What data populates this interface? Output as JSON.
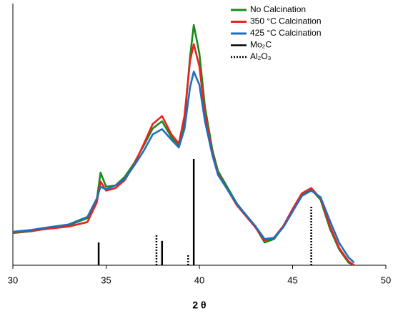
{
  "chart_data": {
    "type": "line",
    "xlabel": "2 θ",
    "xlim": [
      30,
      50
    ],
    "xticks": [
      30,
      35,
      40,
      45,
      50
    ],
    "ylim": [
      0,
      100
    ],
    "legend": "upper right",
    "x": [
      30,
      31,
      32,
      33,
      34,
      34.5,
      34.7,
      35,
      35.5,
      36,
      36.5,
      37,
      37.5,
      38,
      38.5,
      38.9,
      39.2,
      39.5,
      39.7,
      40,
      40.3,
      40.7,
      41,
      42,
      43,
      43.5,
      44,
      44.5,
      45,
      45.5,
      46,
      46.5,
      47,
      47.5,
      48,
      48.3
    ],
    "series": [
      {
        "name": "No Calcination",
        "color": "#1a8a1a",
        "kind": "curve",
        "values": [
          12.3,
          13,
          14.2,
          15.3,
          18,
          25,
          35.4,
          30,
          30.5,
          33.8,
          39,
          45.5,
          52.3,
          55,
          49,
          45.5,
          55,
          79.6,
          91.8,
          81,
          60.5,
          44,
          36,
          23.7,
          14.7,
          8.7,
          10,
          14.7,
          21,
          27,
          29,
          25,
          14,
          6,
          1,
          0
        ]
      },
      {
        "name": "350 °C Calcination",
        "color": "#e8231e",
        "kind": "curve",
        "values": [
          12.5,
          13.2,
          14,
          14.8,
          16.5,
          24,
          32,
          28.5,
          29.5,
          32.5,
          38.5,
          46,
          54,
          57,
          50,
          46.5,
          57,
          78,
          84.5,
          76,
          58,
          43,
          35,
          23,
          14.5,
          9.5,
          10.5,
          15,
          21.5,
          27.5,
          29.5,
          25.5,
          15,
          6.5,
          1.5,
          0
        ]
      },
      {
        "name": "425 °C Calcination",
        "color": "#1f6fc0",
        "kind": "curve",
        "values": [
          12.8,
          13.5,
          14.6,
          15.6,
          18.5,
          25.5,
          30,
          29,
          30.5,
          33,
          38,
          43.5,
          50,
          52,
          48,
          45,
          52,
          68,
          74,
          69,
          55,
          42,
          34.5,
          23.5,
          15,
          10,
          10.5,
          14.5,
          20.5,
          26.5,
          28.5,
          26,
          17,
          8.5,
          3,
          1
        ]
      },
      {
        "name": "Mo₂C",
        "color": "#000000",
        "kind": "stick",
        "style": "solid",
        "x": [
          34.6,
          38.0,
          39.7
        ],
        "values": [
          8.7,
          9.3,
          40.6
        ]
      },
      {
        "name": "Al₂O₃",
        "color": "#000000",
        "kind": "stick",
        "style": "dotted",
        "x": [
          37.7,
          39.4,
          46.0
        ],
        "values": [
          12,
          3.8,
          22.9
        ]
      }
    ]
  }
}
